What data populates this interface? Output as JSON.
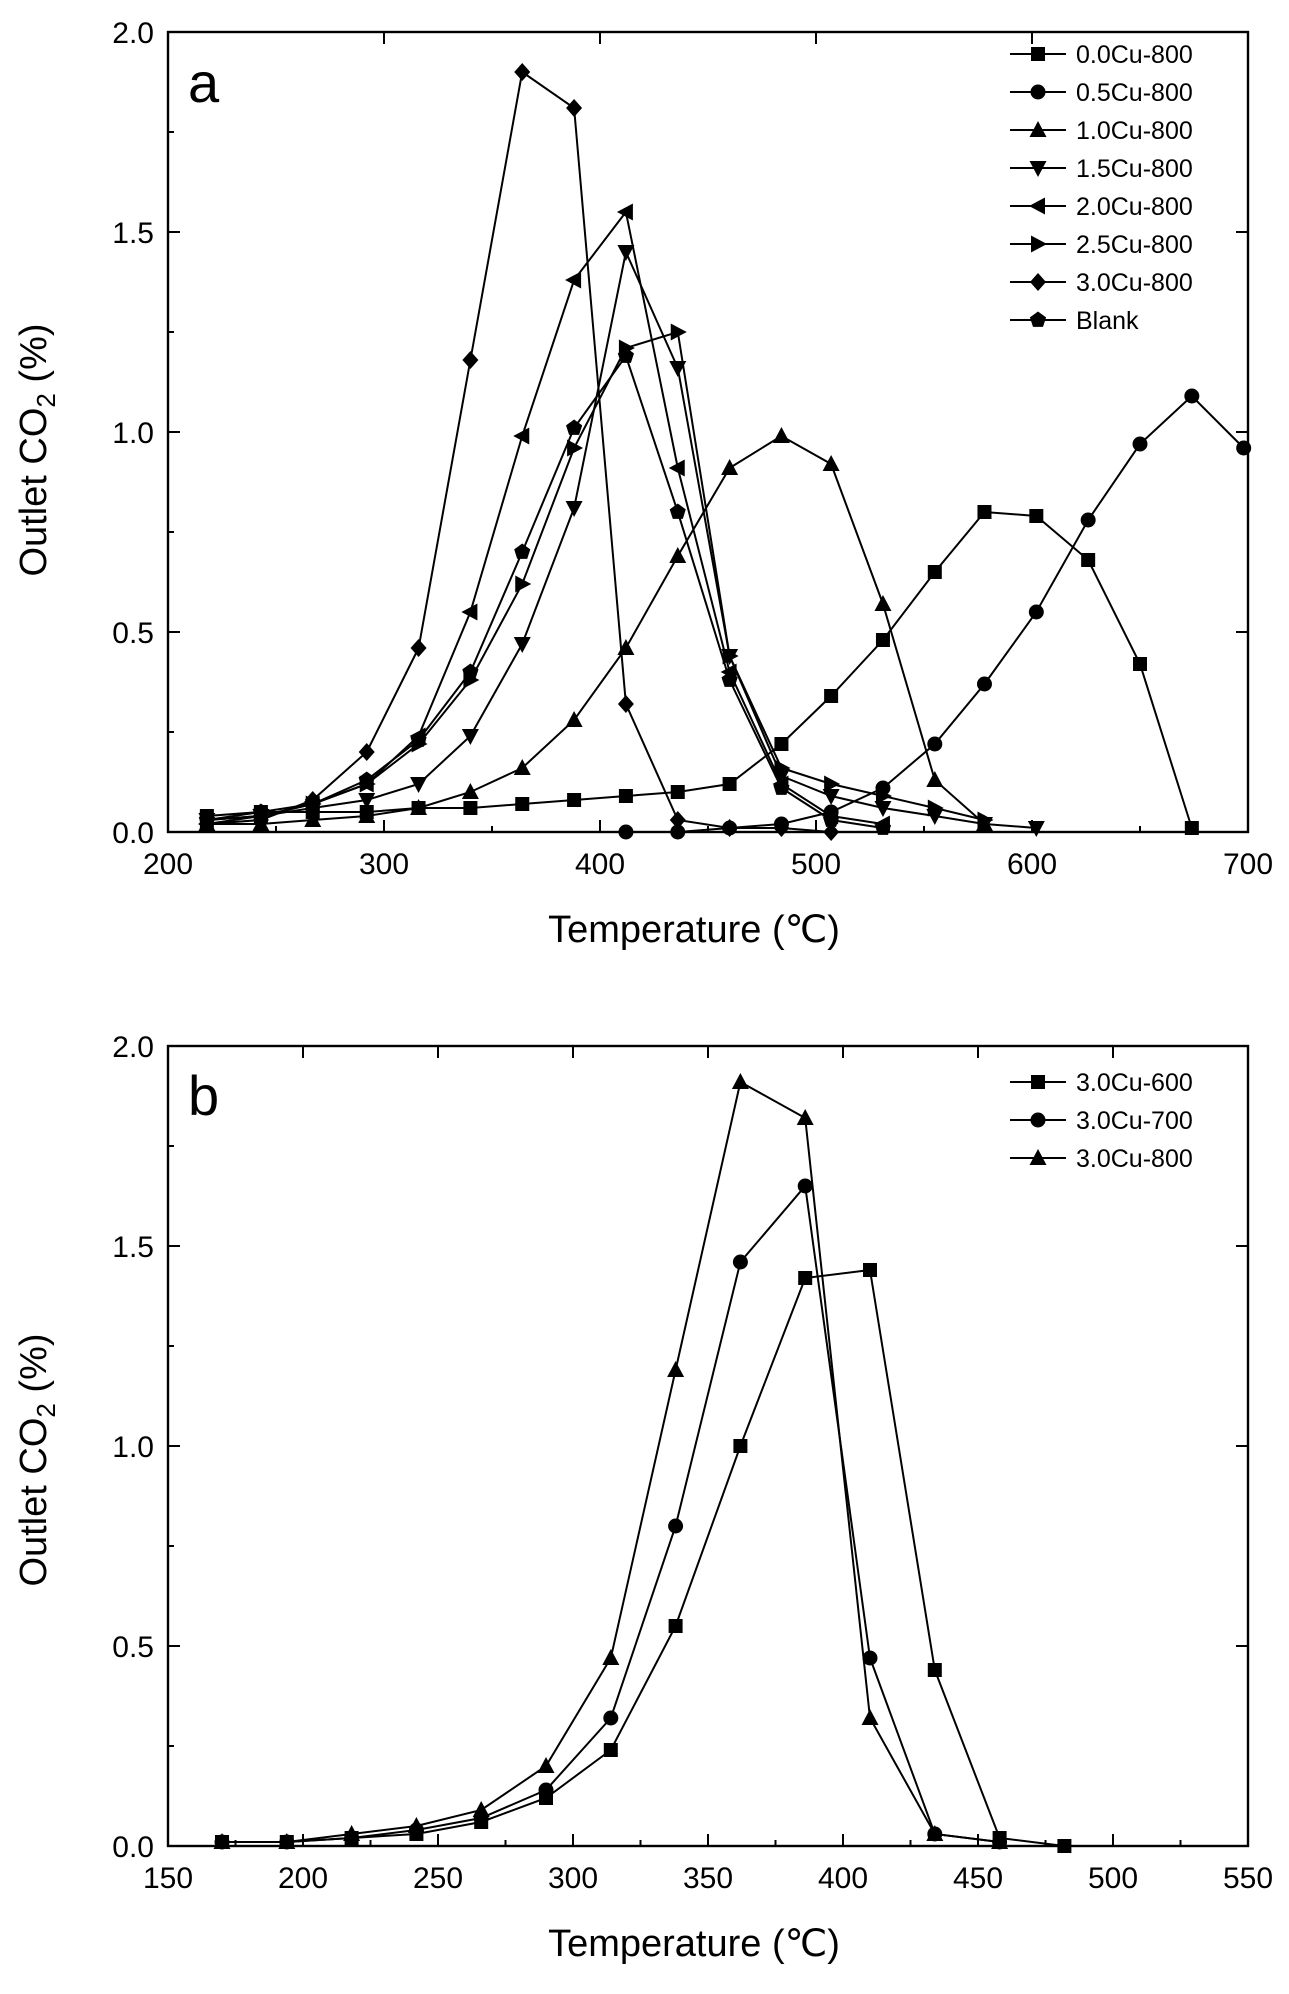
{
  "chart_data": [
    {
      "type": "line",
      "panel_label": "a",
      "xlabel": "Temperature (℃)",
      "ylabel_main": "Outlet CO",
      "ylabel_sub": "2",
      "ylabel_tail": " (%)",
      "xlim": [
        200,
        700
      ],
      "ylim": [
        0.0,
        2.0
      ],
      "xticks": [
        "200",
        "300",
        "400",
        "500",
        "600",
        "700"
      ],
      "yticks": [
        "0.0",
        "0.5",
        "1.0",
        "1.5",
        "2.0"
      ],
      "legend_position": "top-right",
      "series": [
        {
          "name": "0.0Cu-800",
          "marker": "square",
          "x": [
            218,
            243,
            267,
            292,
            316,
            340,
            364,
            388,
            412,
            436,
            460,
            484,
            507,
            531,
            555,
            578,
            602,
            626,
            650,
            674
          ],
          "y": [
            0.04,
            0.05,
            0.05,
            0.05,
            0.06,
            0.06,
            0.07,
            0.08,
            0.09,
            0.1,
            0.12,
            0.22,
            0.34,
            0.48,
            0.65,
            0.8,
            0.79,
            0.68,
            0.42,
            0.01
          ]
        },
        {
          "name": "0.5Cu-800",
          "marker": "circle",
          "x": [
            412,
            436,
            460,
            484,
            507,
            531,
            555,
            578,
            602,
            626,
            650,
            674,
            698
          ],
          "y": [
            0.0,
            0.0,
            0.01,
            0.02,
            0.05,
            0.11,
            0.22,
            0.37,
            0.55,
            0.78,
            0.97,
            1.09,
            0.96
          ]
        },
        {
          "name": "1.0Cu-800",
          "marker": "triangle-up",
          "x": [
            218,
            243,
            267,
            292,
            316,
            340,
            364,
            388,
            412,
            436,
            460,
            484,
            507,
            531,
            555,
            578
          ],
          "y": [
            0.02,
            0.02,
            0.03,
            0.04,
            0.06,
            0.1,
            0.16,
            0.28,
            0.46,
            0.69,
            0.91,
            0.99,
            0.92,
            0.57,
            0.13,
            0.02
          ]
        },
        {
          "name": "1.5Cu-800",
          "marker": "triangle-down",
          "x": [
            218,
            243,
            267,
            292,
            316,
            340,
            364,
            388,
            412,
            436,
            460,
            484,
            507,
            531,
            555,
            578,
            602
          ],
          "y": [
            0.03,
            0.04,
            0.06,
            0.08,
            0.12,
            0.24,
            0.47,
            0.81,
            1.45,
            1.16,
            0.44,
            0.14,
            0.09,
            0.06,
            0.04,
            0.02,
            0.01
          ]
        },
        {
          "name": "2.0Cu-800",
          "marker": "triangle-left",
          "x": [
            218,
            243,
            267,
            292,
            316,
            340,
            364,
            388,
            412,
            436,
            460,
            484,
            507,
            531
          ],
          "y": [
            0.02,
            0.04,
            0.07,
            0.12,
            0.24,
            0.55,
            0.99,
            1.38,
            1.55,
            0.91,
            0.4,
            0.12,
            0.04,
            0.02
          ]
        },
        {
          "name": "2.5Cu-800",
          "marker": "triangle-right",
          "x": [
            218,
            243,
            267,
            292,
            316,
            340,
            364,
            388,
            412,
            436,
            460,
            484,
            507,
            531,
            555,
            578
          ],
          "y": [
            0.03,
            0.04,
            0.07,
            0.12,
            0.22,
            0.38,
            0.62,
            0.96,
            1.21,
            1.25,
            0.44,
            0.16,
            0.12,
            0.09,
            0.06,
            0.03
          ]
        },
        {
          "name": "3.0Cu-800",
          "marker": "diamond",
          "x": [
            218,
            243,
            267,
            292,
            316,
            340,
            364,
            388,
            412,
            436,
            460,
            484,
            507
          ],
          "y": [
            0.02,
            0.03,
            0.08,
            0.2,
            0.46,
            1.18,
            1.9,
            1.81,
            0.32,
            0.03,
            0.01,
            0.01,
            0.0
          ]
        },
        {
          "name": "Blank",
          "marker": "pentagon",
          "x": [
            218,
            243,
            267,
            292,
            316,
            340,
            364,
            388,
            412,
            436,
            460,
            484,
            507,
            531
          ],
          "y": [
            0.03,
            0.05,
            0.07,
            0.13,
            0.23,
            0.4,
            0.7,
            1.01,
            1.19,
            0.8,
            0.38,
            0.11,
            0.03,
            0.01
          ]
        }
      ]
    },
    {
      "type": "line",
      "panel_label": "b",
      "xlabel": "Temperature (℃)",
      "ylabel_main": "Outlet CO",
      "ylabel_sub": "2",
      "ylabel_tail": " (%)",
      "xlim": [
        150,
        550
      ],
      "ylim": [
        0.0,
        2.0
      ],
      "xticks": [
        "150",
        "200",
        "250",
        "300",
        "350",
        "400",
        "450",
        "500",
        "550"
      ],
      "yticks": [
        "0.0",
        "0.5",
        "1.0",
        "1.5",
        "2.0"
      ],
      "legend_position": "top-right",
      "series": [
        {
          "name": "3.0Cu-600",
          "marker": "square",
          "x": [
            170,
            194,
            218,
            242,
            266,
            290,
            314,
            338,
            362,
            386,
            410,
            434,
            458,
            482
          ],
          "y": [
            0.01,
            0.01,
            0.02,
            0.03,
            0.06,
            0.12,
            0.24,
            0.55,
            1.0,
            1.42,
            1.44,
            0.44,
            0.02,
            0.0
          ]
        },
        {
          "name": "3.0Cu-700",
          "marker": "circle",
          "x": [
            170,
            194,
            218,
            242,
            266,
            290,
            314,
            338,
            362,
            386,
            410,
            434,
            458
          ],
          "y": [
            0.01,
            0.01,
            0.02,
            0.04,
            0.07,
            0.14,
            0.32,
            0.8,
            1.46,
            1.65,
            0.47,
            0.03,
            0.01
          ]
        },
        {
          "name": "3.0Cu-800",
          "marker": "triangle-up",
          "x": [
            170,
            194,
            218,
            242,
            266,
            290,
            314,
            338,
            362,
            386,
            410,
            434,
            458
          ],
          "y": [
            0.01,
            0.01,
            0.03,
            0.05,
            0.09,
            0.2,
            0.47,
            1.19,
            1.91,
            1.82,
            0.32,
            0.03,
            0.01
          ]
        }
      ]
    }
  ]
}
